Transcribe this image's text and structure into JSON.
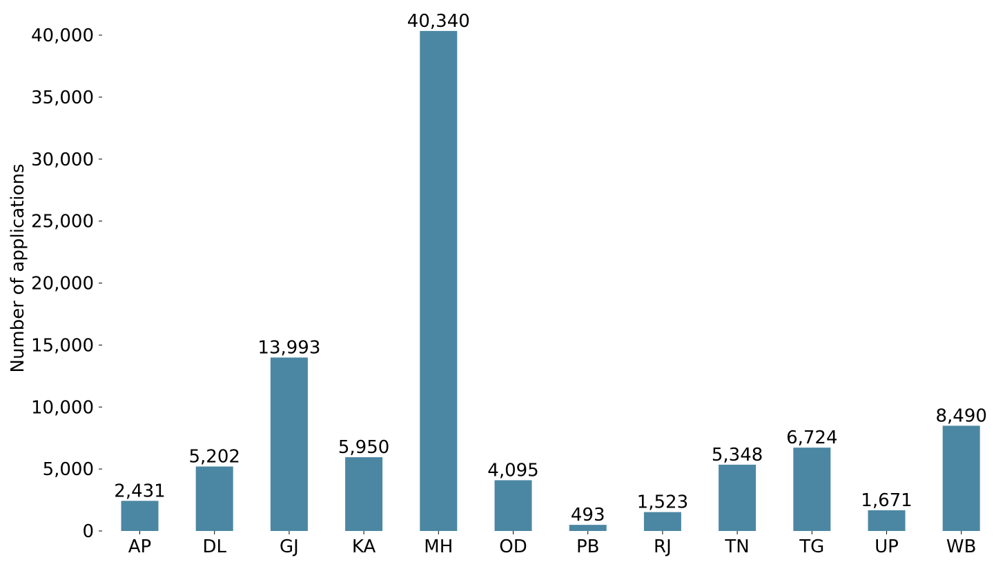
{
  "chart_data": {
    "type": "bar",
    "ylabel": "Number of applications",
    "categories": [
      "AP",
      "DL",
      "GJ",
      "KA",
      "MH",
      "OD",
      "PB",
      "RJ",
      "TN",
      "TG",
      "UP",
      "WB"
    ],
    "values": [
      2431,
      5202,
      13993,
      5950,
      40340,
      4095,
      493,
      1523,
      5348,
      6724,
      1671,
      8490
    ],
    "value_labels": [
      "2,431",
      "5,202",
      "13,993",
      "5,950",
      "40,340",
      "4,095",
      "493",
      "1,523",
      "5,348",
      "6,724",
      "1,671",
      "8,490"
    ],
    "yticks": [
      0,
      5000,
      10000,
      15000,
      20000,
      25000,
      30000,
      35000,
      40000
    ],
    "ytick_labels": [
      "0",
      "5,000",
      "10,000",
      "15,000",
      "20,000",
      "25,000",
      "30,000",
      "35,000",
      "40,000"
    ],
    "ylim": [
      0,
      40340
    ],
    "bar_color": "#4b87a3",
    "grid": false,
    "legend": "none"
  }
}
